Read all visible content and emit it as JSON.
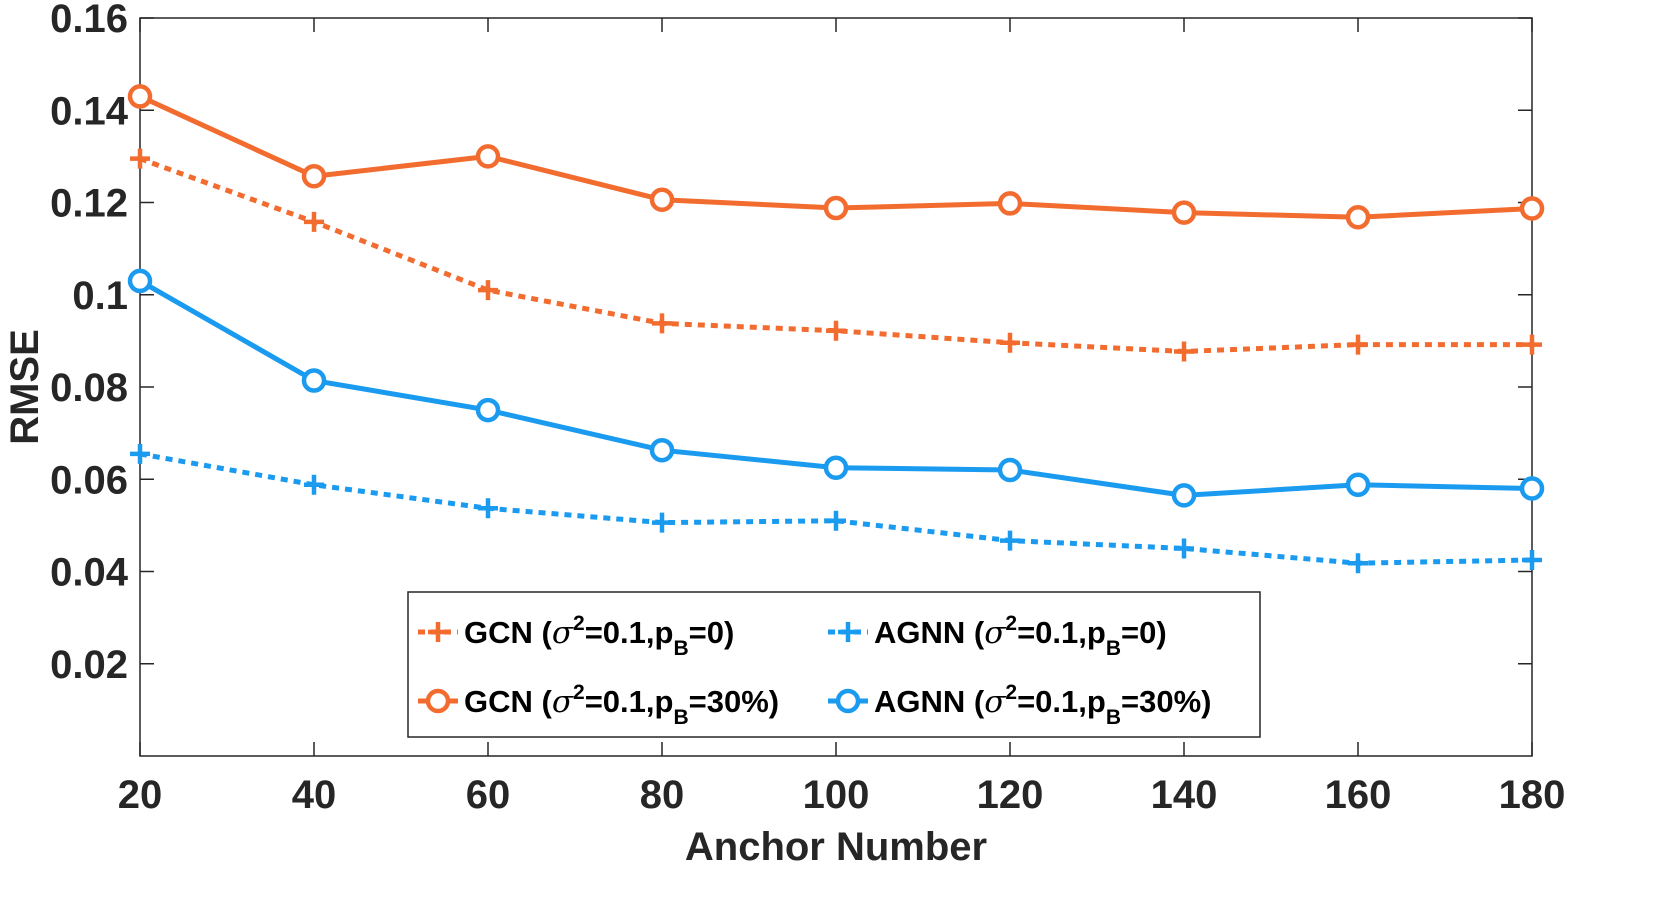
{
  "chart_data": {
    "type": "line",
    "xlabel": "Anchor Number",
    "ylabel": "RMSE",
    "xlim": [
      20,
      180
    ],
    "ylim": [
      0,
      0.16
    ],
    "x": [
      20,
      40,
      60,
      80,
      100,
      120,
      140,
      160,
      180
    ],
    "xtick_labels": [
      "20",
      "40",
      "60",
      "80",
      "100",
      "120",
      "140",
      "160",
      "180"
    ],
    "yticks": [
      0.02,
      0.04,
      0.06,
      0.08,
      0.1,
      0.12,
      0.14,
      0.16
    ],
    "ytick_labels": [
      "0.02",
      "0.04",
      "0.06",
      "0.08",
      "0.1",
      "0.12",
      "0.14",
      "0.16"
    ],
    "grid": false,
    "legend_placement": "bottom-center",
    "series": [
      {
        "legend": {
          "prefix": "GCN (",
          "sym": "σ",
          "sup": "2",
          "mid": "=0.1,p",
          "sub": "B",
          "suffix": "=0)"
        },
        "color": "#f26b2f",
        "line_style": "dotted",
        "marker": "plus",
        "values": [
          0.1295,
          0.1158,
          0.101,
          0.0938,
          0.0922,
          0.0896,
          0.0877,
          0.0892,
          0.0892
        ]
      },
      {
        "legend": {
          "prefix": "AGNN (",
          "sym": "σ",
          "sup": "2",
          "mid": "=0.1,p",
          "sub": "B",
          "suffix": "=0)"
        },
        "color": "#1a9bf0",
        "line_style": "dotted",
        "marker": "plus",
        "values": [
          0.0655,
          0.0588,
          0.0537,
          0.0506,
          0.051,
          0.0467,
          0.045,
          0.0418,
          0.0425
        ]
      },
      {
        "legend": {
          "prefix": "GCN (",
          "sym": "σ",
          "sup": "2",
          "mid": "=0.1,p",
          "sub": "B",
          "suffix": "=30%)"
        },
        "color": "#f26b2f",
        "line_style": "solid",
        "marker": "circle",
        "values": [
          0.143,
          0.1257,
          0.13,
          0.1206,
          0.1188,
          0.1198,
          0.1178,
          0.1168,
          0.1187
        ]
      },
      {
        "legend": {
          "prefix": "AGNN (",
          "sym": "σ",
          "sup": "2",
          "mid": "=0.1,p",
          "sub": "B",
          "suffix": "=30%)"
        },
        "color": "#1a9bf0",
        "line_style": "solid",
        "marker": "circle",
        "values": [
          0.103,
          0.0814,
          0.075,
          0.0663,
          0.0625,
          0.062,
          0.0565,
          0.0588,
          0.058
        ]
      }
    ]
  }
}
